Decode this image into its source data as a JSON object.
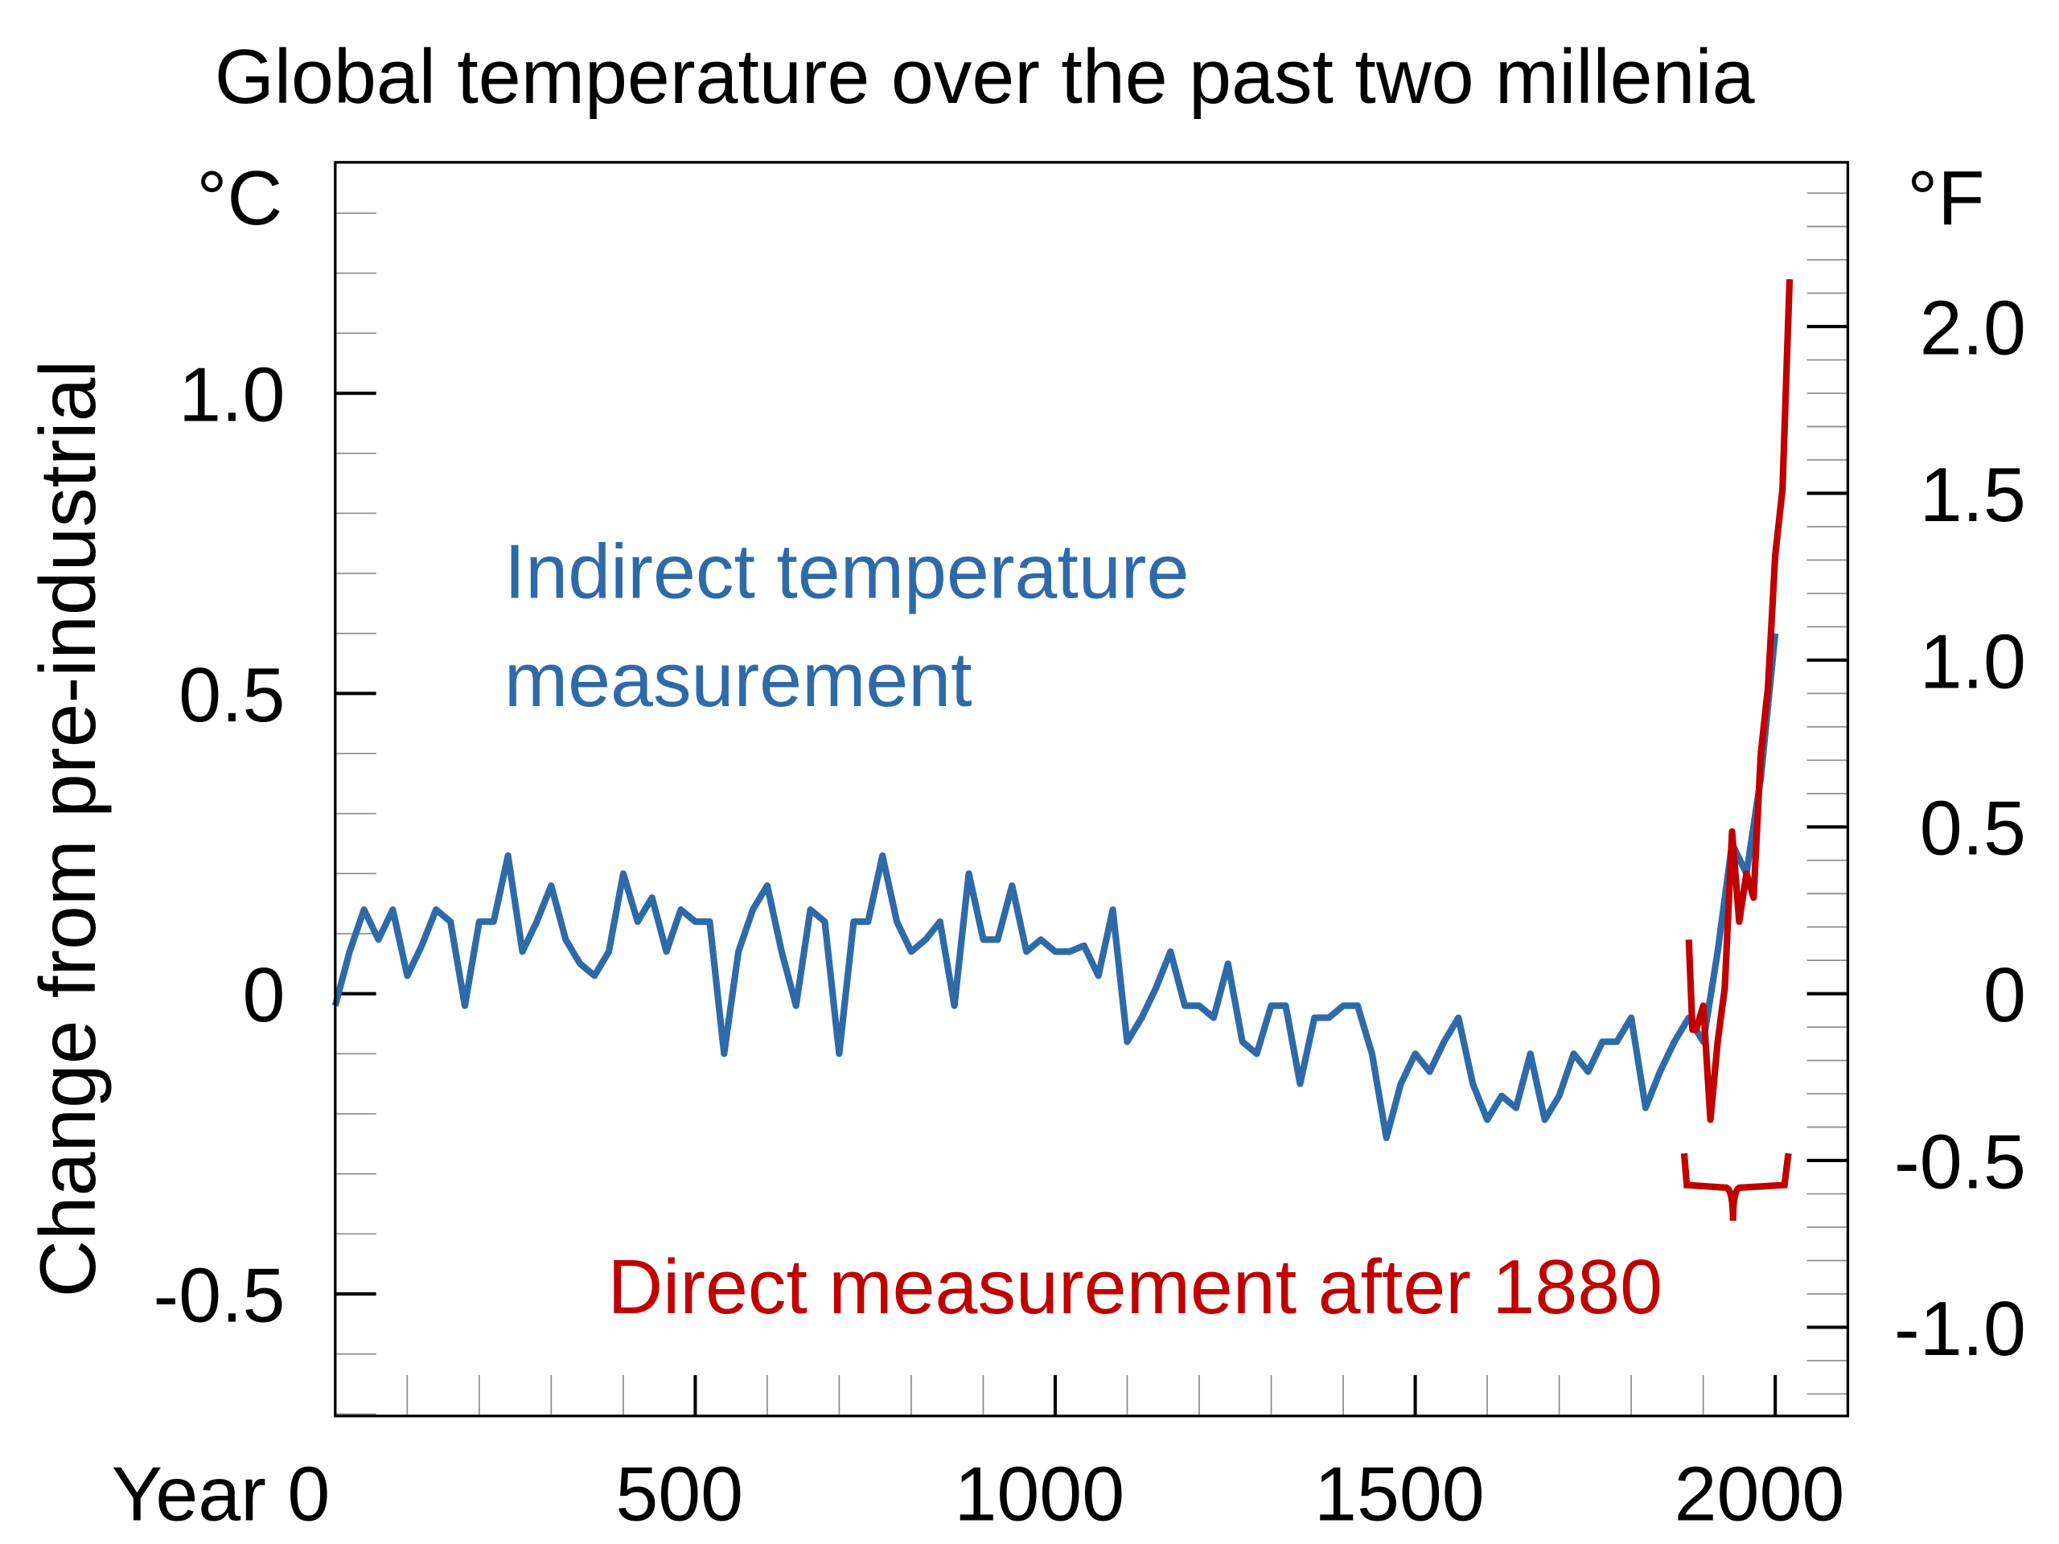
{
  "chart_data": {
    "type": "line",
    "title": "Global temperature over the past two millenia",
    "ylabel": "Change from pre-industrial",
    "y_unit_left": "°C",
    "y_unit_right": "°F",
    "xlim": [
      0,
      2100
    ],
    "ylim": [
      -0.7,
      1.4
    ],
    "x_ticks": [
      {
        "value": 0,
        "label": "Year 0"
      },
      {
        "value": 500,
        "label": "500"
      },
      {
        "value": 1000,
        "label": "1000"
      },
      {
        "value": 1500,
        "label": "1500"
      },
      {
        "value": 2000,
        "label": "2000"
      }
    ],
    "y_ticks_left": [
      {
        "value": -0.5,
        "label": "-0.5"
      },
      {
        "value": 0,
        "label": "0"
      },
      {
        "value": 0.5,
        "label": "0.5"
      },
      {
        "value": 1.0,
        "label": "1.0"
      }
    ],
    "y_ticks_right": [
      {
        "value": -1.0,
        "label": "-1.0"
      },
      {
        "value": -0.5,
        "label": "-0.5"
      },
      {
        "value": 0,
        "label": "0"
      },
      {
        "value": 0.5,
        "label": "0.5"
      },
      {
        "value": 1.0,
        "label": "1.0"
      },
      {
        "value": 1.5,
        "label": "1.5"
      },
      {
        "value": 2.0,
        "label": "2.0"
      }
    ],
    "grid": false,
    "series": [
      {
        "name": "Indirect temperature measurement",
        "label_line1": "Indirect temperature",
        "label_line2": "measurement",
        "color": "#2f6aa8",
        "x": [
          0,
          20,
          40,
          60,
          80,
          100,
          120,
          140,
          160,
          180,
          200,
          220,
          240,
          260,
          280,
          300,
          320,
          340,
          360,
          380,
          400,
          420,
          440,
          460,
          480,
          500,
          520,
          540,
          560,
          580,
          600,
          620,
          640,
          660,
          680,
          700,
          720,
          740,
          760,
          780,
          800,
          820,
          840,
          860,
          880,
          900,
          920,
          940,
          960,
          980,
          1000,
          1020,
          1040,
          1060,
          1080,
          1100,
          1120,
          1140,
          1160,
          1180,
          1200,
          1220,
          1240,
          1260,
          1280,
          1300,
          1320,
          1340,
          1360,
          1380,
          1400,
          1420,
          1440,
          1460,
          1480,
          1500,
          1520,
          1540,
          1560,
          1580,
          1600,
          1620,
          1640,
          1660,
          1680,
          1700,
          1720,
          1740,
          1760,
          1780,
          1800,
          1820,
          1840,
          1860,
          1880,
          1900,
          1920,
          1940,
          1960,
          1980,
          2000
        ],
        "y": [
          -0.02,
          0.07,
          0.14,
          0.09,
          0.14,
          0.03,
          0.08,
          0.14,
          0.12,
          -0.02,
          0.12,
          0.12,
          0.23,
          0.07,
          0.12,
          0.18,
          0.09,
          0.05,
          0.03,
          0.07,
          0.2,
          0.12,
          0.16,
          0.07,
          0.14,
          0.12,
          0.12,
          -0.1,
          0.07,
          0.14,
          0.18,
          0.07,
          -0.02,
          0.14,
          0.12,
          -0.1,
          0.12,
          0.12,
          0.23,
          0.12,
          0.07,
          0.09,
          0.12,
          -0.02,
          0.2,
          0.09,
          0.09,
          0.18,
          0.07,
          0.09,
          0.07,
          0.07,
          0.08,
          0.03,
          0.14,
          -0.08,
          -0.04,
          0.01,
          0.07,
          -0.02,
          -0.02,
          -0.04,
          0.05,
          -0.08,
          -0.1,
          -0.02,
          -0.02,
          -0.15,
          -0.04,
          -0.04,
          -0.02,
          -0.02,
          -0.1,
          -0.24,
          -0.15,
          -0.1,
          -0.13,
          -0.08,
          -0.04,
          -0.15,
          -0.21,
          -0.17,
          -0.19,
          -0.1,
          -0.21,
          -0.17,
          -0.1,
          -0.13,
          -0.08,
          -0.08,
          -0.04,
          -0.19,
          -0.13,
          -0.08,
          -0.04,
          -0.08,
          0.07,
          0.25,
          0.2,
          0.36,
          0.6
        ]
      },
      {
        "name": "Direct measurement after 1880",
        "color": "#c00000",
        "x": [
          1880,
          1885,
          1890,
          1900,
          1910,
          1920,
          1930,
          1940,
          1950,
          1960,
          1970,
          1980,
          1990,
          2000,
          2010,
          2020
        ],
        "y": [
          0.09,
          -0.06,
          -0.06,
          -0.02,
          -0.21,
          -0.08,
          0.01,
          0.27,
          0.12,
          0.2,
          0.16,
          0.4,
          0.51,
          0.73,
          0.84,
          1.19
        ]
      }
    ]
  }
}
